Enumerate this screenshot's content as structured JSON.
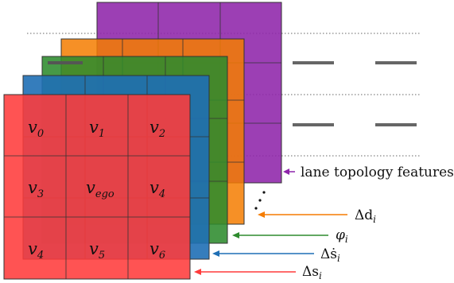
{
  "layers": [
    {
      "name": "lane-topology-layer",
      "color": "#8e24aa",
      "label": "lane topology features"
    },
    {
      "name": "delta-d-layer",
      "color": "#f57c00",
      "label": "Δd",
      "sub": "i"
    },
    {
      "name": "phi-layer",
      "color": "#2e8b2e",
      "label": "φ",
      "sub": "i"
    },
    {
      "name": "delta-s-dot-layer",
      "color": "#1f6fb5",
      "label": "Δṡ",
      "sub": "i"
    },
    {
      "name": "delta-s-layer",
      "color": "#ff3b3b",
      "label": "Δs",
      "sub": "i"
    }
  ],
  "grid_cells": [
    {
      "base": "v",
      "sub": "0"
    },
    {
      "base": "v",
      "sub": "1"
    },
    {
      "base": "v",
      "sub": "2"
    },
    {
      "base": "v",
      "sub": "3"
    },
    {
      "base": "v",
      "sub": "ego"
    },
    {
      "base": "v",
      "sub": "4"
    },
    {
      "base": "v",
      "sub": "4"
    },
    {
      "base": "v",
      "sub": "5"
    },
    {
      "base": "v",
      "sub": "6"
    }
  ]
}
